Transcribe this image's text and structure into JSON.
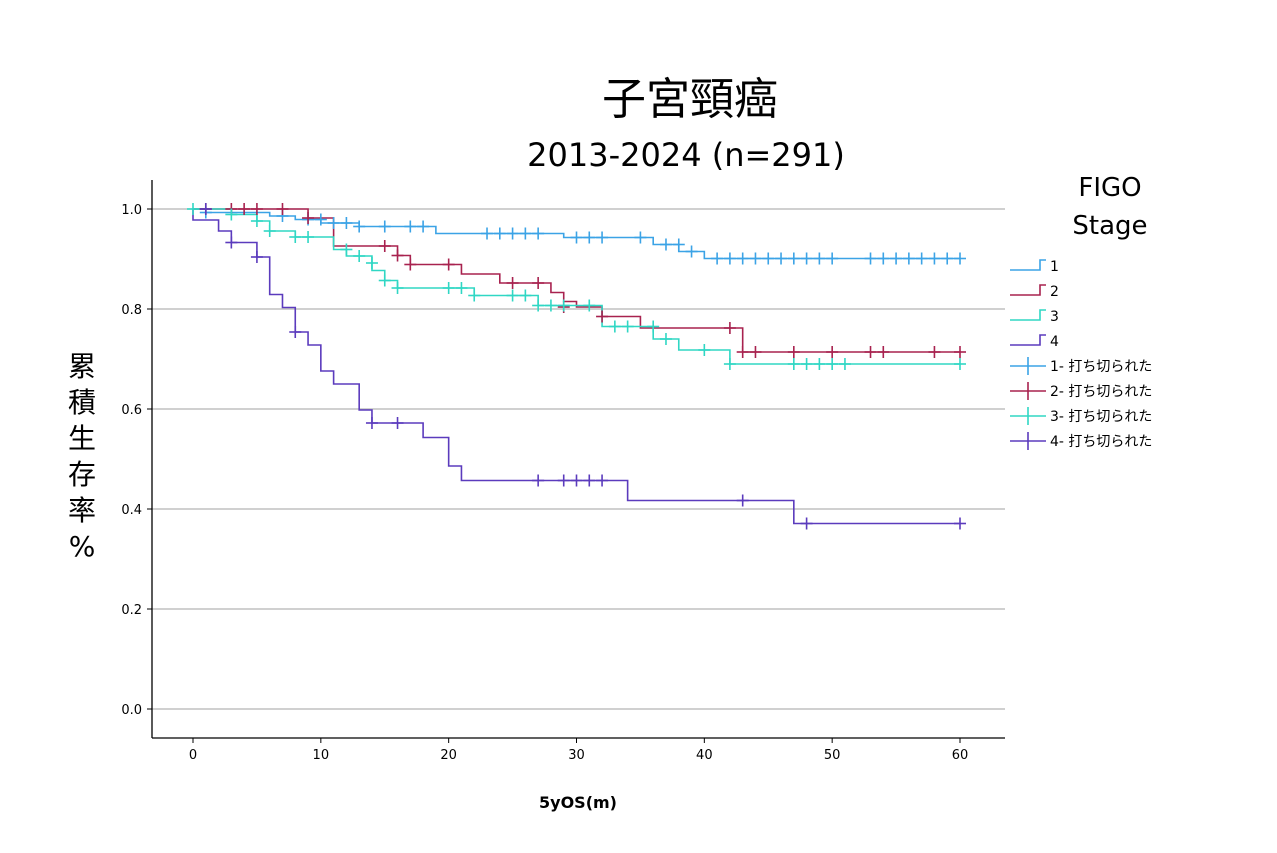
{
  "chart_data": {
    "type": "line",
    "subtype": "kaplan-meier survival curve",
    "title": "子宮頸癌",
    "subtitle": "2013-2024 (n=291)",
    "xlabel": "5yOS(m)",
    "ylabel": "累積生存率%",
    "xlim": [
      -3,
      63
    ],
    "ylim": [
      -0.05,
      1.06
    ],
    "xticks": [
      0,
      10,
      20,
      30,
      40,
      50,
      60
    ],
    "yticks": [
      0.0,
      0.2,
      0.4,
      0.6,
      0.8,
      1.0
    ],
    "xtick_labels": [
      "0",
      "10",
      "20",
      "30",
      "40",
      "50",
      "60"
    ],
    "ytick_labels": [
      "0.0",
      "0.2",
      "0.4",
      "0.6",
      "0.8",
      "1.0"
    ],
    "grid": "horizontal",
    "legend": {
      "title_line1": "FIGO",
      "title_line2": "Stage",
      "placement": "right",
      "entries": [
        "1",
        "2",
        "3",
        "4",
        "1- 打ち切られた",
        "2- 打ち切られた",
        "3- 打ち切られた",
        "4- 打ち切られた"
      ]
    },
    "series": [
      {
        "name": "1",
        "color": "#3ba3e6",
        "steps": [
          [
            0,
            1.0
          ],
          [
            1,
            0.993
          ],
          [
            6,
            0.986
          ],
          [
            8,
            0.979
          ],
          [
            10,
            0.972
          ],
          [
            13,
            0.965
          ],
          [
            19,
            0.951
          ],
          [
            29,
            0.943
          ],
          [
            32,
            0.943
          ],
          [
            36,
            0.929
          ],
          [
            38,
            0.915
          ],
          [
            40,
            0.901
          ],
          [
            60,
            0.901
          ]
        ],
        "censored": [
          [
            1,
            0.993
          ],
          [
            7,
            0.986
          ],
          [
            9,
            0.979
          ],
          [
            10,
            0.979
          ],
          [
            11,
            0.972
          ],
          [
            12,
            0.972
          ],
          [
            13,
            0.965
          ],
          [
            15,
            0.965
          ],
          [
            17,
            0.965
          ],
          [
            18,
            0.965
          ],
          [
            23,
            0.951
          ],
          [
            24,
            0.951
          ],
          [
            25,
            0.951
          ],
          [
            26,
            0.951
          ],
          [
            27,
            0.951
          ],
          [
            30,
            0.943
          ],
          [
            31,
            0.943
          ],
          [
            32,
            0.943
          ],
          [
            35,
            0.943
          ],
          [
            37,
            0.929
          ],
          [
            38,
            0.929
          ],
          [
            39,
            0.915
          ],
          [
            41,
            0.901
          ],
          [
            42,
            0.901
          ],
          [
            43,
            0.901
          ],
          [
            44,
            0.901
          ],
          [
            45,
            0.901
          ],
          [
            46,
            0.901
          ],
          [
            47,
            0.901
          ],
          [
            48,
            0.901
          ],
          [
            49,
            0.901
          ],
          [
            50,
            0.901
          ],
          [
            53,
            0.901
          ],
          [
            54,
            0.901
          ],
          [
            55,
            0.901
          ],
          [
            56,
            0.901
          ],
          [
            57,
            0.901
          ],
          [
            58,
            0.901
          ],
          [
            59,
            0.901
          ],
          [
            60,
            0.901
          ]
        ]
      },
      {
        "name": "2",
        "color": "#a8224f",
        "steps": [
          [
            0,
            1.0
          ],
          [
            9,
            0.982
          ],
          [
            11,
            0.926
          ],
          [
            16,
            0.907
          ],
          [
            17,
            0.889
          ],
          [
            21,
            0.87
          ],
          [
            24,
            0.852
          ],
          [
            28,
            0.833
          ],
          [
            29,
            0.815
          ],
          [
            30,
            0.804
          ],
          [
            32,
            0.785
          ],
          [
            35,
            0.762
          ],
          [
            43,
            0.714
          ],
          [
            60,
            0.714
          ]
        ],
        "censored": [
          [
            1,
            1.0
          ],
          [
            3,
            1.0
          ],
          [
            4,
            1.0
          ],
          [
            5,
            1.0
          ],
          [
            7,
            1.0
          ],
          [
            9,
            0.982
          ],
          [
            15,
            0.926
          ],
          [
            16,
            0.907
          ],
          [
            17,
            0.889
          ],
          [
            20,
            0.889
          ],
          [
            25,
            0.852
          ],
          [
            27,
            0.852
          ],
          [
            29,
            0.804
          ],
          [
            32,
            0.785
          ],
          [
            42,
            0.762
          ],
          [
            43,
            0.714
          ],
          [
            44,
            0.714
          ],
          [
            47,
            0.714
          ],
          [
            50,
            0.714
          ],
          [
            53,
            0.714
          ],
          [
            54,
            0.714
          ],
          [
            58,
            0.714
          ],
          [
            60,
            0.714
          ]
        ]
      },
      {
        "name": "3",
        "color": "#30d7c4",
        "steps": [
          [
            0,
            1.0
          ],
          [
            3,
            0.989
          ],
          [
            5,
            0.976
          ],
          [
            6,
            0.956
          ],
          [
            8,
            0.944
          ],
          [
            11,
            0.919
          ],
          [
            12,
            0.906
          ],
          [
            14,
            0.877
          ],
          [
            15,
            0.857
          ],
          [
            16,
            0.842
          ],
          [
            22,
            0.827
          ],
          [
            27,
            0.807
          ],
          [
            32,
            0.765
          ],
          [
            36,
            0.74
          ],
          [
            38,
            0.718
          ],
          [
            42,
            0.69
          ],
          [
            60,
            0.69
          ]
        ],
        "censored": [
          [
            0,
            1.0
          ],
          [
            3,
            0.989
          ],
          [
            5,
            0.976
          ],
          [
            6,
            0.956
          ],
          [
            8,
            0.944
          ],
          [
            9,
            0.944
          ],
          [
            12,
            0.919
          ],
          [
            13,
            0.906
          ],
          [
            14,
            0.892
          ],
          [
            15,
            0.857
          ],
          [
            16,
            0.842
          ],
          [
            20,
            0.842
          ],
          [
            21,
            0.842
          ],
          [
            22,
            0.827
          ],
          [
            25,
            0.827
          ],
          [
            26,
            0.827
          ],
          [
            27,
            0.807
          ],
          [
            28,
            0.807
          ],
          [
            29,
            0.807
          ],
          [
            31,
            0.807
          ],
          [
            33,
            0.765
          ],
          [
            34,
            0.765
          ],
          [
            36,
            0.765
          ],
          [
            37,
            0.74
          ],
          [
            40,
            0.718
          ],
          [
            42,
            0.69
          ],
          [
            47,
            0.69
          ],
          [
            48,
            0.69
          ],
          [
            49,
            0.69
          ],
          [
            50,
            0.69
          ],
          [
            51,
            0.69
          ],
          [
            60,
            0.69
          ]
        ]
      },
      {
        "name": "4",
        "color": "#5b3bbd",
        "steps": [
          [
            0,
            1.0
          ],
          [
            0,
            0.978
          ],
          [
            2,
            0.956
          ],
          [
            3,
            0.933
          ],
          [
            5,
            0.904
          ],
          [
            6,
            0.829
          ],
          [
            7,
            0.803
          ],
          [
            8,
            0.754
          ],
          [
            9,
            0.728
          ],
          [
            10,
            0.676
          ],
          [
            11,
            0.65
          ],
          [
            13,
            0.598
          ],
          [
            14,
            0.572
          ],
          [
            18,
            0.543
          ],
          [
            20,
            0.486
          ],
          [
            21,
            0.457
          ],
          [
            34,
            0.417
          ],
          [
            47,
            0.371
          ],
          [
            60,
            0.371
          ]
        ],
        "censored": [
          [
            1,
            1.0
          ],
          [
            3,
            0.933
          ],
          [
            5,
            0.904
          ],
          [
            8,
            0.754
          ],
          [
            14,
            0.572
          ],
          [
            16,
            0.572
          ],
          [
            27,
            0.457
          ],
          [
            29,
            0.457
          ],
          [
            30,
            0.457
          ],
          [
            31,
            0.457
          ],
          [
            32,
            0.457
          ],
          [
            43,
            0.417
          ],
          [
            48,
            0.371
          ],
          [
            60,
            0.371
          ]
        ]
      }
    ]
  }
}
